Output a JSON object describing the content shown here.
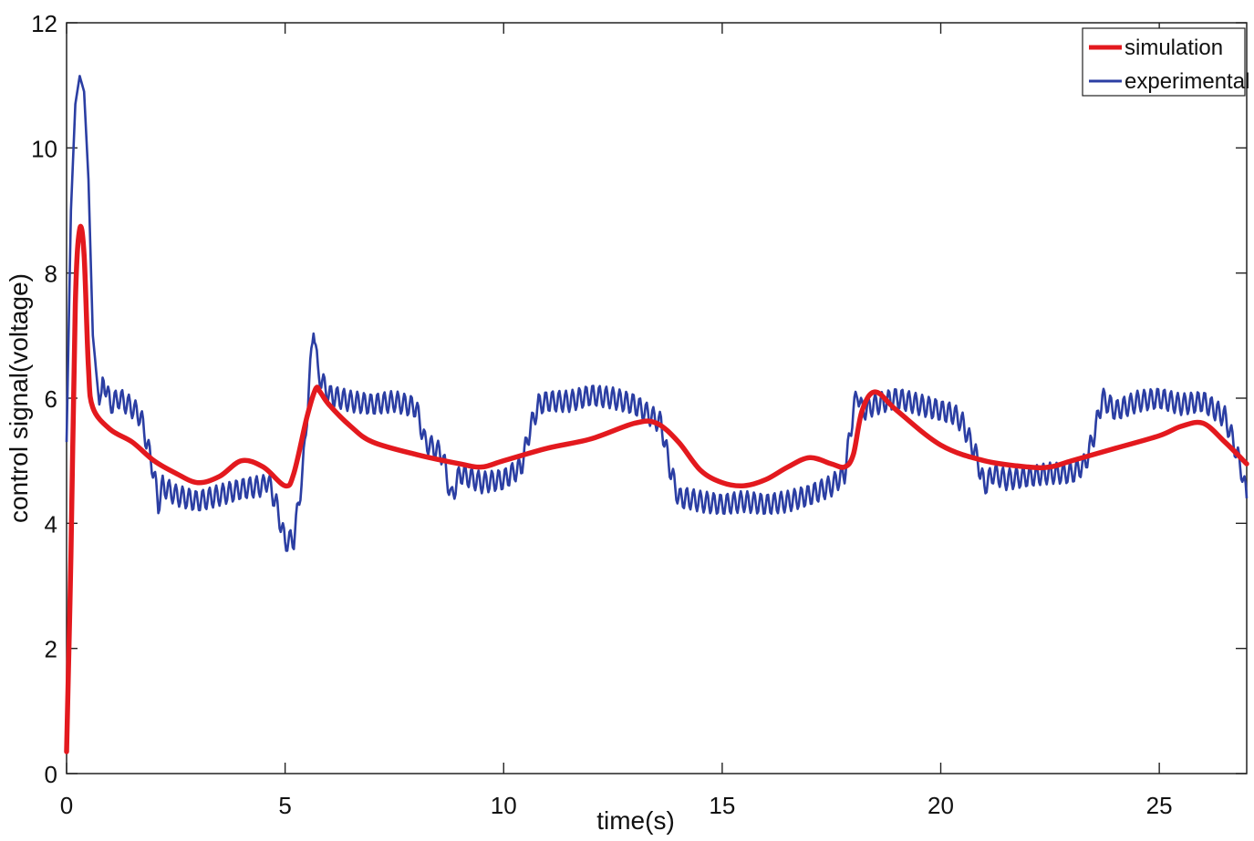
{
  "chart_data": {
    "type": "line",
    "title": "",
    "xlabel": "time(s)",
    "ylabel": "control signal(voltage)",
    "xlim": [
      0,
      27
    ],
    "ylim": [
      0,
      12
    ],
    "xticks": [
      0,
      5,
      10,
      15,
      20,
      25
    ],
    "yticks": [
      0,
      2,
      4,
      6,
      8,
      10,
      12
    ],
    "grid": false,
    "legend_position": "top-right",
    "series": [
      {
        "name": "simulation",
        "color": "#e3191e",
        "style": "smooth",
        "x": [
          0,
          0.1,
          0.2,
          0.3,
          0.4,
          0.5,
          0.6,
          1,
          1.5,
          2,
          2.5,
          3,
          3.5,
          4,
          4.5,
          5,
          5.2,
          5.5,
          5.7,
          5.8,
          6,
          6.5,
          7,
          8,
          9,
          9.5,
          10,
          11,
          12,
          13,
          13.5,
          14,
          14.5,
          15,
          15.5,
          16,
          16.5,
          17,
          17.5,
          17.8,
          18,
          18.2,
          18.5,
          19,
          20,
          21,
          22,
          22.5,
          23,
          24,
          25,
          25.5,
          26,
          26.5,
          27
        ],
        "values": [
          0.35,
          3.5,
          7.5,
          8.7,
          8.3,
          6.5,
          5.85,
          5.5,
          5.3,
          5.0,
          4.8,
          4.65,
          4.75,
          5.0,
          4.9,
          4.6,
          4.8,
          5.7,
          6.15,
          6.1,
          5.9,
          5.55,
          5.3,
          5.1,
          4.95,
          4.9,
          5.0,
          5.2,
          5.35,
          5.6,
          5.6,
          5.3,
          4.85,
          4.65,
          4.6,
          4.7,
          4.9,
          5.05,
          4.95,
          4.9,
          5.1,
          5.8,
          6.1,
          5.8,
          5.25,
          5.0,
          4.9,
          4.9,
          5.0,
          5.2,
          5.4,
          5.55,
          5.6,
          5.3,
          4.95
        ]
      },
      {
        "name": "experimental",
        "color": "#2b3ea3",
        "style": "linear",
        "x": [
          0,
          0.1,
          0.2,
          0.3,
          0.4,
          0.5,
          0.6,
          0.75,
          0.85,
          1.0,
          1.2,
          1.5,
          1.7,
          1.8,
          2.0,
          2.1,
          2.2,
          2.5,
          3.0,
          3.5,
          4.0,
          4.5,
          4.6,
          4.8,
          5.0,
          5.2,
          5.4,
          5.55,
          5.65,
          5.75,
          6.0,
          6.5,
          7.0,
          7.5,
          8.0,
          8.2,
          8.6,
          8.8,
          9.0,
          9.5,
          10.0,
          10.4,
          10.6,
          10.8,
          11.0,
          11.5,
          12.0,
          12.5,
          13.0,
          13.4,
          13.6,
          13.8,
          14.0,
          14.2,
          14.5,
          15.0,
          15.5,
          16.0,
          16.5,
          17.0,
          17.5,
          17.8,
          18.0,
          18.1,
          18.2,
          18.5,
          19.0,
          19.5,
          20.0,
          20.3,
          20.5,
          20.8,
          21.0,
          21.2,
          21.5,
          22.0,
          22.5,
          23.0,
          23.3,
          23.5,
          23.7,
          24.0,
          24.5,
          25.0,
          25.5,
          26.0,
          26.5,
          26.7,
          26.9,
          27.0
        ],
        "values": [
          5.3,
          9.0,
          10.7,
          11.15,
          10.9,
          9.5,
          7.0,
          5.9,
          6.3,
          5.9,
          6.0,
          5.85,
          5.7,
          5.4,
          4.8,
          4.3,
          4.6,
          4.45,
          4.35,
          4.45,
          4.55,
          4.6,
          4.7,
          4.3,
          3.7,
          3.75,
          4.8,
          6.2,
          7.2,
          6.4,
          6.05,
          5.95,
          5.9,
          5.95,
          5.85,
          5.3,
          5.1,
          4.4,
          4.8,
          4.65,
          4.7,
          4.9,
          5.5,
          5.9,
          5.95,
          5.95,
          6.05,
          6.0,
          5.9,
          5.7,
          5.6,
          4.9,
          4.4,
          4.4,
          4.35,
          4.3,
          4.35,
          4.3,
          4.35,
          4.45,
          4.6,
          4.8,
          5.8,
          6.1,
          5.8,
          5.9,
          6.0,
          5.9,
          5.8,
          5.75,
          5.6,
          5.1,
          4.6,
          4.8,
          4.7,
          4.75,
          4.8,
          4.8,
          4.95,
          5.4,
          6.0,
          5.8,
          5.95,
          6.0,
          5.9,
          5.95,
          5.7,
          5.3,
          4.8,
          4.4
        ]
      }
    ]
  }
}
